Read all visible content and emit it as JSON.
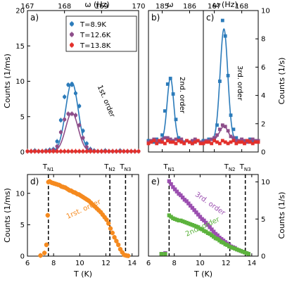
{
  "colors": {
    "blue": "#2b7bba",
    "purple": "#8d4e8a",
    "red": "#e3302b",
    "orange": "#f58a1f",
    "violet": "#9b4fb0",
    "green": "#5cb33d"
  },
  "legend": {
    "entries": [
      "T=8.9K",
      "T=12.6K",
      "T=13.8K"
    ]
  },
  "transitions": {
    "labels": [
      "T",
      "T",
      "T"
    ],
    "subs": [
      "N1",
      "N2",
      "N3"
    ],
    "values": [
      7.6,
      12.3,
      13.5
    ]
  },
  "chart_data": [
    {
      "panel": "a",
      "type": "scatter",
      "label": "a)",
      "annotation": "1st. order",
      "xlabel_top": "ω (Hz)",
      "ylabel": "Counts (1/ms)",
      "xlim": [
        167,
        170
      ],
      "ylim": [
        0,
        20
      ],
      "xticks": [
        "167",
        "168",
        "169",
        "170"
      ],
      "yticks": [
        "0",
        "5",
        "10",
        "15",
        "20"
      ],
      "series": [
        {
          "name": "T=8.9K",
          "color": "blue",
          "x": [
            167.0,
            167.1,
            167.2,
            167.3,
            167.4,
            167.5,
            167.6,
            167.7,
            167.8,
            167.9,
            168.0,
            168.1,
            168.2,
            168.3,
            168.4,
            168.5,
            168.6,
            168.7,
            168.8,
            168.9,
            169.0,
            169.1,
            169.2,
            169.3,
            169.4,
            169.5,
            169.6,
            169.7,
            169.8,
            169.9,
            170.0
          ],
          "y": [
            0.1,
            0.1,
            0.2,
            0.1,
            0.1,
            0.2,
            0.3,
            0.4,
            1.5,
            4.5,
            7.8,
            9.5,
            9.5,
            8.3,
            6.5,
            3.0,
            1.2,
            0.4,
            0.2,
            0.1,
            0.1,
            0.2,
            0.1,
            0.1,
            0.1,
            0.2,
            0.1,
            0.1,
            0.1,
            0.1,
            0.1
          ]
        },
        {
          "name": "T=12.6K",
          "color": "purple",
          "x": [
            167.0,
            167.1,
            167.2,
            167.3,
            167.4,
            167.5,
            167.6,
            167.7,
            167.8,
            167.9,
            168.0,
            168.1,
            168.2,
            168.3,
            168.4,
            168.5,
            168.6,
            168.7,
            168.8,
            168.9,
            169.0,
            169.1,
            169.2,
            169.3,
            169.4,
            169.5,
            169.6,
            169.7,
            169.8,
            169.9,
            170.0
          ],
          "y": [
            0.1,
            0.1,
            0.1,
            0.1,
            0.1,
            0.1,
            0.2,
            0.3,
            0.8,
            2.8,
            4.6,
            5.4,
            5.4,
            5.2,
            3.8,
            2.0,
            0.7,
            0.3,
            0.1,
            0.1,
            0.1,
            0.1,
            0.1,
            0.1,
            0.1,
            0.1,
            0.1,
            0.1,
            0.1,
            0.1,
            0.1
          ]
        },
        {
          "name": "T=13.8K",
          "color": "red",
          "x": [
            167.0,
            167.1,
            167.2,
            167.3,
            167.4,
            167.5,
            167.6,
            167.7,
            167.8,
            167.9,
            168.0,
            168.1,
            168.2,
            168.3,
            168.4,
            168.5,
            168.6,
            168.7,
            168.8,
            168.9,
            169.0,
            169.1,
            169.2,
            169.3,
            169.4,
            169.5,
            169.6,
            169.7,
            169.8,
            169.9,
            170.0
          ],
          "y": [
            0.1,
            0.1,
            0.1,
            0.1,
            0.1,
            0.1,
            0.1,
            0.1,
            0.1,
            0.1,
            0.1,
            0.1,
            0.1,
            0.1,
            0.1,
            0.1,
            0.1,
            0.1,
            0.1,
            0.1,
            0.1,
            0.1,
            0.1,
            0.1,
            0.1,
            0.1,
            0.1,
            0.1,
            0.1,
            0.1,
            0.1
          ]
        }
      ],
      "fits": [
        {
          "color": "blue",
          "center": 168.2,
          "width": 0.17,
          "amp": 9.8,
          "base": 0.05
        },
        {
          "color": "purple",
          "center": 168.2,
          "width": 0.17,
          "amp": 5.5,
          "base": 0.05
        }
      ]
    },
    {
      "panel": "b",
      "type": "scatter",
      "label": "b)",
      "annotation": "2nd. order",
      "xlabel_top": "ω",
      "xlim": [
        184.5,
        186.5
      ],
      "ylim": [
        0,
        10
      ],
      "xticks": [
        "185",
        "186"
      ],
      "series": [
        {
          "name": "T=8.9K",
          "color": "blue",
          "x": [
            184.5,
            184.6,
            184.7,
            184.8,
            184.9,
            185.0,
            185.1,
            185.2,
            185.3,
            185.4,
            185.5,
            185.6,
            185.7,
            185.8,
            185.9,
            186.0,
            186.1,
            186.2,
            186.3,
            186.4,
            186.5
          ],
          "y": [
            0.8,
            0.8,
            0.7,
            0.9,
            0.8,
            1.2,
            2.9,
            4.8,
            5.2,
            4.1,
            2.3,
            1.0,
            0.8,
            0.7,
            0.8,
            0.7,
            0.6,
            0.7,
            0.8,
            0.7,
            0.8
          ]
        },
        {
          "name": "T=12.6K",
          "color": "purple",
          "x": [
            184.5,
            184.6,
            184.7,
            184.8,
            184.9,
            185.0,
            185.1,
            185.2,
            185.3,
            185.4,
            185.5,
            185.6,
            185.7,
            185.8,
            185.9,
            186.0,
            186.1,
            186.2,
            186.3,
            186.4,
            186.5
          ],
          "y": [
            0.7,
            0.8,
            0.9,
            0.8,
            0.7,
            0.9,
            1.0,
            1.0,
            0.9,
            0.8,
            0.9,
            0.8,
            0.9,
            0.7,
            0.8,
            0.7,
            0.8,
            0.9,
            0.8,
            0.7,
            0.8
          ]
        },
        {
          "name": "T=13.8K",
          "color": "red",
          "x": [
            184.5,
            184.6,
            184.7,
            184.8,
            184.9,
            185.0,
            185.1,
            185.2,
            185.3,
            185.4,
            185.5,
            185.6,
            185.7,
            185.8,
            185.9,
            186.0,
            186.1,
            186.2,
            186.3,
            186.4,
            186.5
          ],
          "y": [
            0.6,
            0.7,
            0.8,
            0.6,
            0.8,
            0.7,
            0.6,
            0.8,
            0.7,
            0.7,
            0.6,
            0.8,
            0.7,
            0.6,
            0.8,
            0.7,
            0.6,
            0.7,
            0.8,
            0.6,
            0.7
          ]
        }
      ],
      "fits": [
        {
          "color": "blue",
          "center": 185.3,
          "width": 0.12,
          "amp": 4.5,
          "base": 0.75
        }
      ]
    },
    {
      "panel": "c",
      "type": "scatter",
      "label": "c)",
      "annotation": "3rd. order",
      "xlabel_top": "ω (Hz)",
      "ylabel": "Counts (1/s)",
      "xlim": [
        166.6,
        168.6
      ],
      "ylim": [
        0,
        10
      ],
      "xticks": [
        "167",
        "168"
      ],
      "yticks": [
        "0",
        "2",
        "4",
        "6",
        "8",
        "10"
      ],
      "series": [
        {
          "name": "T=8.9K",
          "color": "blue",
          "x": [
            166.6,
            166.7,
            166.8,
            166.9,
            167.0,
            167.1,
            167.2,
            167.3,
            167.4,
            167.5,
            167.6,
            167.7,
            167.8,
            167.9,
            168.0,
            168.1,
            168.2,
            168.3,
            168.4,
            168.5,
            168.6
          ],
          "y": [
            0.8,
            0.8,
            0.9,
            0.9,
            1.0,
            1.9,
            5.0,
            9.3,
            8.2,
            5.4,
            2.6,
            1.6,
            1.0,
            0.8,
            0.9,
            0.8,
            0.8,
            0.9,
            0.8,
            0.8,
            0.8
          ]
        },
        {
          "name": "T=12.6K",
          "color": "purple",
          "x": [
            166.6,
            166.7,
            166.8,
            166.9,
            167.0,
            167.1,
            167.2,
            167.3,
            167.4,
            167.5,
            167.6,
            167.7,
            167.8,
            167.9,
            168.0,
            168.1,
            168.2,
            168.3,
            168.4,
            168.5,
            168.6
          ],
          "y": [
            0.7,
            0.8,
            0.8,
            0.9,
            1.0,
            1.2,
            1.6,
            1.9,
            1.8,
            1.5,
            1.1,
            1.0,
            0.8,
            0.8,
            0.9,
            0.8,
            0.7,
            0.8,
            0.9,
            0.8,
            0.8
          ]
        },
        {
          "name": "T=13.8K",
          "color": "red",
          "x": [
            166.6,
            166.7,
            166.8,
            166.9,
            167.0,
            167.1,
            167.2,
            167.3,
            167.4,
            167.5,
            167.6,
            167.7,
            167.8,
            167.9,
            168.0,
            168.1,
            168.2,
            168.3,
            168.4,
            168.5,
            168.6
          ],
          "y": [
            0.6,
            0.7,
            0.7,
            0.6,
            0.8,
            0.7,
            0.6,
            0.8,
            0.7,
            0.6,
            0.7,
            0.8,
            0.6,
            0.7,
            0.7,
            0.6,
            0.8,
            0.7,
            0.6,
            0.7,
            0.7
          ]
        }
      ],
      "fits": [
        {
          "color": "blue",
          "center": 167.35,
          "width": 0.14,
          "amp": 7.9,
          "base": 0.8
        },
        {
          "color": "purple",
          "center": 167.35,
          "width": 0.16,
          "amp": 1.0,
          "base": 0.8
        }
      ]
    },
    {
      "panel": "d",
      "type": "scatter",
      "label": "d)",
      "annotation": "1rst. order",
      "xlabel": "T (K)",
      "ylabel": "Counts (1/ms)",
      "xlim": [
        6,
        14.5
      ],
      "ylim": [
        0,
        13
      ],
      "xticks": [
        "6",
        "8",
        "10",
        "12",
        "14"
      ],
      "yticks": [
        "0",
        "5",
        "10"
      ],
      "series": [
        {
          "name": "1rst. order",
          "color": "orange",
          "x": [
            7.0,
            7.3,
            7.45,
            7.55,
            7.6,
            7.7,
            7.85,
            8.0,
            8.15,
            8.3,
            8.45,
            8.6,
            8.75,
            8.9,
            9.05,
            9.2,
            9.35,
            9.5,
            9.65,
            9.8,
            9.95,
            10.1,
            10.25,
            10.4,
            10.55,
            10.7,
            10.85,
            11.0,
            11.15,
            11.3,
            11.45,
            11.6,
            11.75,
            11.9,
            12.05,
            12.2,
            12.35,
            12.5,
            12.65,
            12.8,
            12.95,
            13.1,
            13.25,
            13.4,
            13.55,
            13.7
          ],
          "y": [
            0.1,
            0.5,
            1.8,
            6.5,
            11.8,
            11.9,
            11.7,
            11.6,
            11.5,
            11.4,
            11.3,
            11.1,
            11.0,
            10.9,
            10.7,
            10.5,
            10.4,
            10.2,
            10.1,
            9.9,
            9.8,
            9.6,
            9.4,
            9.2,
            9.0,
            8.8,
            8.5,
            8.2,
            7.9,
            7.6,
            7.3,
            7.0,
            6.6,
            6.2,
            5.8,
            5.2,
            4.4,
            3.7,
            3.0,
            2.4,
            1.8,
            1.1,
            0.6,
            0.2,
            0.1,
            0.05
          ]
        }
      ]
    },
    {
      "panel": "e",
      "type": "scatter",
      "label": "e)",
      "xlabel": "T (K)",
      "ylabel": "Counts (1/s)",
      "xlim": [
        6,
        14.5
      ],
      "ylim": [
        0,
        11
      ],
      "xticks": [
        "6",
        "8",
        "10",
        "12",
        "14"
      ],
      "yticks": [
        "0",
        "5",
        "10"
      ],
      "series": [
        {
          "name": "3rd. order",
          "color": "violet",
          "x": [
            7.0,
            7.3,
            7.6,
            7.75,
            7.9,
            8.05,
            8.2,
            8.35,
            8.5,
            8.65,
            8.8,
            8.95,
            9.1,
            9.25,
            9.4,
            9.55,
            9.7,
            9.85,
            10.0,
            10.15,
            10.3,
            10.45,
            10.6,
            10.75,
            10.9,
            11.05,
            11.2,
            11.35,
            11.5,
            11.65,
            11.8,
            11.95,
            12.1,
            12.25,
            12.4,
            12.55,
            12.7,
            12.85,
            13.0,
            13.15,
            13.3,
            13.45,
            13.6,
            13.75
          ],
          "y": [
            0.3,
            0.4,
            10.1,
            9.7,
            9.3,
            9.0,
            8.7,
            8.4,
            8.2,
            7.9,
            7.6,
            7.4,
            7.1,
            6.8,
            6.5,
            6.2,
            5.9,
            5.6,
            5.3,
            5.0,
            4.8,
            4.5,
            4.2,
            3.9,
            3.6,
            3.3,
            3.0,
            2.8,
            2.5,
            2.3,
            2.1,
            1.9,
            1.7,
            1.5,
            1.3,
            1.2,
            1.1,
            0.9,
            0.8,
            0.7,
            0.6,
            0.5,
            0.4,
            0.3
          ]
        },
        {
          "name": "2nd. order",
          "color": "green",
          "x": [
            7.0,
            7.3,
            7.6,
            7.75,
            7.9,
            8.05,
            8.2,
            8.35,
            8.5,
            8.65,
            8.8,
            8.95,
            9.1,
            9.25,
            9.4,
            9.55,
            9.7,
            9.85,
            10.0,
            10.15,
            10.3,
            10.45,
            10.6,
            10.75,
            10.9,
            11.05,
            11.2,
            11.35,
            11.5,
            11.65,
            11.8,
            11.95,
            12.1,
            12.25,
            12.4,
            12.55,
            12.7,
            12.85,
            13.0,
            13.15,
            13.3,
            13.45,
            13.6,
            13.75
          ],
          "y": [
            0.3,
            0.3,
            5.5,
            5.3,
            5.1,
            5.0,
            4.9,
            4.8,
            4.8,
            4.7,
            4.6,
            4.5,
            4.4,
            4.3,
            4.2,
            4.1,
            4.0,
            3.9,
            3.7,
            3.6,
            3.4,
            3.3,
            3.1,
            3.0,
            2.8,
            2.6,
            2.4,
            2.3,
            2.1,
            1.9,
            1.8,
            1.6,
            1.5,
            1.3,
            1.2,
            1.1,
            1.0,
            0.9,
            0.8,
            0.7,
            0.6,
            0.5,
            0.4,
            0.3
          ]
        }
      ],
      "annotations": [
        "3rd. order",
        "2nd. order"
      ]
    }
  ]
}
